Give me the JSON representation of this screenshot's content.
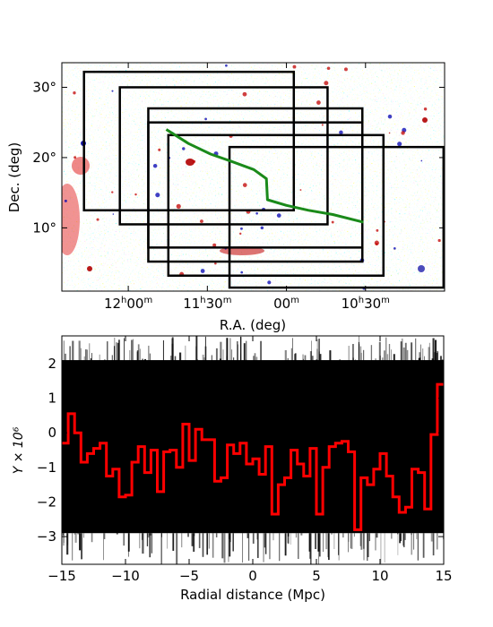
{
  "chart_data": [
    {
      "type": "heatmap",
      "xlabel": "R.A. (deg)",
      "ylabel": "Dec. (deg)",
      "x_tick_labels": [
        {
          "h": "12",
          "m": "00"
        },
        {
          "h": "11",
          "m": "30"
        },
        {
          "h": "",
          "m": "00"
        },
        {
          "h": "10",
          "m": "30"
        }
      ],
      "y_ticks": [
        10,
        20,
        30
      ],
      "y_tick_labels": [
        "10°",
        "20°",
        "30°"
      ],
      "ylim": [
        1,
        33.5
      ],
      "colors": {
        "positive": "#e01010",
        "negative": "#1010e0",
        "boxes": "#000000",
        "track": "#1a8a1a"
      },
      "boxes": [
        {
          "ra": [
            184.2,
            164.3
          ],
          "dec": [
            12.5,
            32.2
          ]
        },
        {
          "ra": [
            180.8,
            161.1
          ],
          "dec": [
            10.5,
            30.0
          ]
        },
        {
          "ra": [
            178.1,
            157.8
          ],
          "dec": [
            7.2,
            27.0
          ]
        },
        {
          "ra": [
            178.1,
            157.8
          ],
          "dec": [
            5.2,
            25.0
          ]
        },
        {
          "ra": [
            176.2,
            155.8
          ],
          "dec": [
            3.2,
            23.2
          ]
        },
        {
          "ra": [
            170.4,
            150.1
          ],
          "dec": [
            1.5,
            21.5
          ]
        }
      ],
      "track": {
        "ra": [
          176.4,
          174.3,
          172.2,
          170.3,
          168.1,
          166.9,
          166.8,
          165.0,
          162.9,
          160.6,
          157.7
        ],
        "dec": [
          24.0,
          22.0,
          20.5,
          19.5,
          18.3,
          17.0,
          14.0,
          13.2,
          12.5,
          11.9,
          10.8
        ]
      }
    },
    {
      "type": "line",
      "xlabel": "Radial distance (Mpc)",
      "ylabel": "Y × 10⁶",
      "xlim": [
        -15,
        15
      ],
      "ylim": [
        -3.8,
        2.8
      ],
      "x_ticks": [
        -15,
        -10,
        -5,
        0,
        5,
        10,
        15
      ],
      "y_ticks": [
        -3,
        -2,
        -1,
        0,
        1,
        2
      ],
      "colors": {
        "mean": "#ff0000",
        "random": "#000000"
      },
      "series": [
        {
          "step": 0.5,
          "x": [
            -15.0,
            -14.5,
            -14.0,
            -13.5,
            -13.0,
            -12.5,
            -12.0,
            -11.5,
            -11.0,
            -10.5,
            -10.0,
            -9.5,
            -9.0,
            -8.5,
            -8.0,
            -7.5,
            -7.0,
            -6.5,
            -6.0,
            -5.5,
            -5.0,
            -4.5,
            -4.0,
            -3.5,
            -3.0,
            -2.5,
            -2.0,
            -1.5,
            -1.0,
            -0.5,
            0.0,
            0.5,
            1.0,
            1.5,
            2.0,
            2.5,
            3.0,
            3.5,
            4.0,
            4.5,
            5.0,
            5.5,
            6.0,
            6.5,
            7.0,
            7.5,
            8.0,
            8.5,
            9.0,
            9.5,
            10.0,
            10.5,
            11.0,
            11.5,
            12.0,
            12.5,
            13.0,
            13.5,
            14.0,
            14.5
          ],
          "y": [
            -0.3,
            0.55,
            0.0,
            -0.85,
            -0.6,
            -0.45,
            -0.3,
            -1.25,
            -1.05,
            -1.85,
            -1.8,
            -0.85,
            -0.4,
            -1.15,
            -0.5,
            -1.7,
            -0.55,
            -0.5,
            -1.0,
            0.25,
            -0.8,
            0.1,
            -0.2,
            -0.2,
            -1.4,
            -1.3,
            -0.35,
            -0.6,
            -0.3,
            -0.9,
            -0.75,
            -1.2,
            -0.4,
            -2.35,
            -1.5,
            -1.3,
            -0.5,
            -0.9,
            -1.25,
            -0.45,
            -2.35,
            -1.0,
            -0.4,
            -0.3,
            -0.25,
            -0.55,
            -2.8,
            -1.3,
            -1.5,
            -1.05,
            -0.6,
            -1.25,
            -1.85,
            -2.3,
            -2.15,
            -1.05,
            -1.15,
            -2.2,
            -0.05,
            1.4
          ]
        }
      ]
    }
  ]
}
